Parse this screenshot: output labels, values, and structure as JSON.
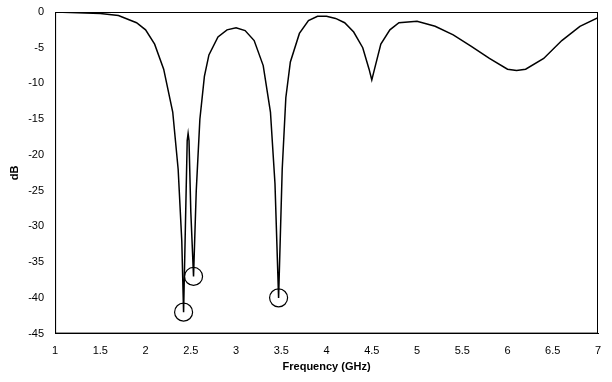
{
  "chart_data": {
    "type": "line",
    "x_label": "Frequency (GHz)",
    "y_label": "dB",
    "xlim": [
      1,
      7
    ],
    "ylim": [
      -45,
      0
    ],
    "xticks": [
      1,
      1.5,
      2,
      2.5,
      3,
      3.5,
      4,
      4.5,
      5,
      5.5,
      6,
      6.5,
      7
    ],
    "yticks": [
      0,
      -5,
      -10,
      -15,
      -20,
      -25,
      -30,
      -35,
      -40,
      -45
    ],
    "grid": false,
    "color": "#000000",
    "x": [
      1.0,
      1.5,
      1.7,
      1.9,
      2.0,
      2.1,
      2.2,
      2.3,
      2.36,
      2.4,
      2.42,
      2.44,
      2.46,
      2.47,
      2.48,
      2.5,
      2.53,
      2.56,
      2.6,
      2.65,
      2.7,
      2.8,
      2.9,
      3.0,
      3.1,
      3.2,
      3.3,
      3.38,
      3.43,
      3.47,
      3.51,
      3.55,
      3.6,
      3.7,
      3.8,
      3.9,
      4.0,
      4.1,
      4.2,
      4.3,
      4.4,
      4.47,
      4.5,
      4.53,
      4.6,
      4.7,
      4.8,
      5.0,
      5.2,
      5.4,
      5.6,
      5.8,
      6.0,
      6.1,
      6.2,
      6.4,
      6.6,
      6.8,
      7.0
    ],
    "values": [
      0,
      -0.2,
      -0.5,
      -1.5,
      -2.5,
      -4.5,
      -8,
      -14,
      -22,
      -32,
      -42,
      -30,
      -18,
      -17,
      -18,
      -28,
      -37,
      -25,
      -15,
      -9,
      -6,
      -3.5,
      -2.5,
      -2.2,
      -2.6,
      -4,
      -7.5,
      -14,
      -24,
      -40,
      -22,
      -12,
      -7,
      -3,
      -1.2,
      -0.6,
      -0.6,
      -0.9,
      -1.5,
      -2.8,
      -5,
      -8,
      -9.5,
      -8,
      -4.5,
      -2.5,
      -1.5,
      -1.3,
      -2,
      -3.2,
      -4.8,
      -6.5,
      -8,
      -8.2,
      -8,
      -6.5,
      -4,
      -2,
      -0.8
    ],
    "circled_points": {
      "x": [
        2.42,
        2.53,
        3.47
      ],
      "values": [
        -42,
        -37,
        -40
      ]
    }
  }
}
